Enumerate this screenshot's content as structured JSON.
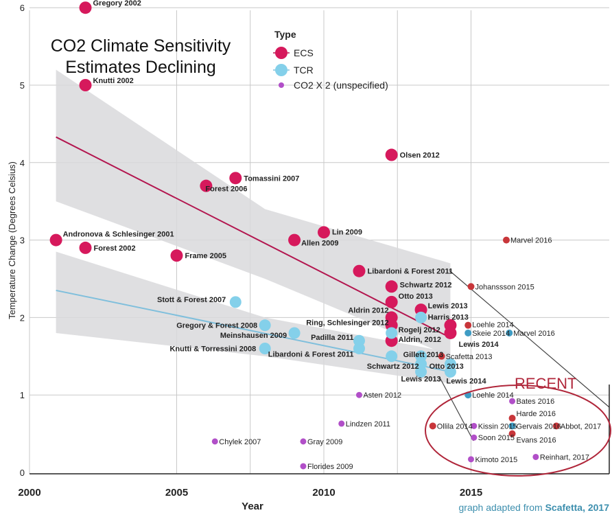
{
  "chart_data": {
    "type": "scatter",
    "title": "CO2 Climate Sensitivity Estimates Declining",
    "title_lines": [
      "CO2 Climate Sensitivity",
      "Estimates Declining"
    ],
    "xlabel": "Year",
    "ylabel": "Temperature Change (Degrees Celsius)",
    "xlim": [
      2000,
      2019.7
    ],
    "ylim": [
      0,
      6
    ],
    "x_ticks": [
      "2000",
      "2005",
      "2010",
      "2015"
    ],
    "y_ticks": [
      "0",
      "1",
      "2",
      "3",
      "4",
      "5",
      "6"
    ],
    "grid": true,
    "legend": {
      "title": "Type",
      "placement": "top-center",
      "entries": [
        {
          "key": "ECS",
          "label": "ECS"
        },
        {
          "key": "TCR",
          "label": "TCR"
        },
        {
          "key": "CO2",
          "label": "CO2 X 2 (unspecified)"
        }
      ]
    },
    "colors": {
      "ECS": "#d6195c",
      "ECS_small": "#c8363a",
      "TCR": "#84d0ea",
      "TCR_small": "#3f9cc4",
      "CO2": "#b14fc8",
      "ECS_line": "#b3164f",
      "TCR_line": "#7fbfdc",
      "band": "#d9d9dc",
      "recent": "#b0263a",
      "credit": "#3d8fae"
    },
    "trend_lines": [
      {
        "series": "ECS",
        "x": [
          2000.9,
          2014.3
        ],
        "y": [
          4.33,
          1.74
        ]
      },
      {
        "series": "TCR",
        "x": [
          2000.9,
          2014.3
        ],
        "y": [
          2.35,
          1.3
        ]
      }
    ],
    "bands": [
      {
        "series": "ECS",
        "x": [
          2000.9,
          2008,
          2014.3
        ],
        "upper": [
          5.2,
          3.4,
          2.7
        ],
        "lower": [
          3.5,
          2.5,
          1.5
        ]
      },
      {
        "series": "TCR",
        "x": [
          2000.9,
          2008,
          2014.3
        ],
        "upper": [
          2.85,
          2.0,
          1.55
        ],
        "lower": [
          1.8,
          1.5,
          1.15
        ]
      }
    ],
    "points": [
      {
        "label": "Gregory 2002",
        "x": 2001.9,
        "y": 6.0,
        "type": "ECS"
      },
      {
        "label": "Knutti 2002",
        "x": 2001.9,
        "y": 5.0,
        "type": "ECS"
      },
      {
        "label": "Andronova & Schlesinger 2001",
        "x": 2000.9,
        "y": 3.0,
        "type": "ECS"
      },
      {
        "label": "Forest 2002",
        "x": 2001.9,
        "y": 2.9,
        "type": "ECS"
      },
      {
        "label": "Frame 2005",
        "x": 2005.0,
        "y": 2.8,
        "type": "ECS"
      },
      {
        "label": "Forest 2006",
        "x": 2006.0,
        "y": 3.7,
        "type": "ECS"
      },
      {
        "label": "Tomassini 2007",
        "x": 2007.0,
        "y": 3.8,
        "type": "ECS"
      },
      {
        "label": "Allen 2009",
        "x": 2009.0,
        "y": 3.0,
        "type": "ECS"
      },
      {
        "label": "Lin 2009",
        "x": 2010.0,
        "y": 3.1,
        "type": "ECS"
      },
      {
        "label": "Olsen 2012",
        "x": 2012.3,
        "y": 4.1,
        "type": "ECS"
      },
      {
        "label": "Libardoni & Forest 2011",
        "x": 2011.2,
        "y": 2.6,
        "type": "ECS"
      },
      {
        "label": "Schwartz 2012",
        "x": 2012.3,
        "y": 2.4,
        "type": "ECS"
      },
      {
        "label": "Otto 2013",
        "x": 2012.3,
        "y": 2.2,
        "type": "ECS"
      },
      {
        "label": "Aldrin 2012",
        "x": 2012.3,
        "y": 2.0,
        "type": "ECS"
      },
      {
        "label": "Ring, Schlesinger 2012",
        "x": 2012.3,
        "y": 1.9,
        "type": "ECS"
      },
      {
        "label": "Aldrin, 2012",
        "x": 2012.3,
        "y": 1.7,
        "type": "ECS"
      },
      {
        "label": "Lewis 2013",
        "x": 2013.3,
        "y": 2.1,
        "type": "ECS"
      },
      {
        "label": "",
        "x": 2014.3,
        "y": 1.9,
        "type": "ECS"
      },
      {
        "label": "Lewis 2014",
        "x": 2014.3,
        "y": 1.8,
        "type": "ECS"
      },
      {
        "label": "Stott & Forest 2007",
        "x": 2007.0,
        "y": 2.2,
        "type": "TCR"
      },
      {
        "label": "Gregory & Forest 2008",
        "x": 2008.0,
        "y": 1.9,
        "type": "TCR"
      },
      {
        "label": "Meinshausen 2009",
        "x": 2009.0,
        "y": 1.8,
        "type": "TCR"
      },
      {
        "label": "Knutti & Torressini 2008",
        "x": 2008.0,
        "y": 1.6,
        "type": "TCR"
      },
      {
        "label": "Padilla 2011",
        "x": 2011.2,
        "y": 1.7,
        "type": "TCR"
      },
      {
        "label": "Libardoni & Forest 2011",
        "x": 2011.2,
        "y": 1.6,
        "type": "TCR"
      },
      {
        "label": "Rogelj 2012",
        "x": 2012.3,
        "y": 1.8,
        "type": "TCR"
      },
      {
        "label": "Schwartz 2012",
        "x": 2012.3,
        "y": 1.5,
        "type": "TCR"
      },
      {
        "label": "Harris 2013",
        "x": 2013.3,
        "y": 2.0,
        "type": "TCR"
      },
      {
        "label": "Gillett 2013",
        "x": 2013.3,
        "y": 1.5,
        "type": "TCR"
      },
      {
        "label": "Otto 2013",
        "x": 2013.3,
        "y": 1.4,
        "type": "TCR"
      },
      {
        "label": "Lewis 2013",
        "x": 2013.3,
        "y": 1.3,
        "type": "TCR"
      },
      {
        "label": "",
        "x": 2014.3,
        "y": 1.4,
        "type": "TCR"
      },
      {
        "label": "Lewis 2014",
        "x": 2014.3,
        "y": 1.3,
        "type": "TCR"
      },
      {
        "label": "Johanssson 2015",
        "x": 2015.0,
        "y": 2.4,
        "type": "ECS_small"
      },
      {
        "label": "Marvel 2016",
        "x": 2016.2,
        "y": 3.0,
        "type": "ECS_small"
      },
      {
        "label": "Loehle 2014",
        "x": 2014.9,
        "y": 1.9,
        "type": "ECS_small"
      },
      {
        "label": "Skeie 2014",
        "x": 2014.9,
        "y": 1.8,
        "type": "TCR_small"
      },
      {
        "label": "Marvel 2016",
        "x": 2016.3,
        "y": 1.8,
        "type": "TCR_small"
      },
      {
        "label": "Scafetta 2013",
        "x": 2014.0,
        "y": 1.5,
        "type": "ECS_small"
      },
      {
        "label": "Loehle 2014",
        "x": 2014.9,
        "y": 1.0,
        "type": "TCR_small"
      },
      {
        "label": "Asten 2012",
        "x": 2011.2,
        "y": 1.0,
        "type": "CO2"
      },
      {
        "label": "Lindzen 2011",
        "x": 2010.6,
        "y": 0.63,
        "type": "CO2"
      },
      {
        "label": "Chylek 2007",
        "x": 2006.3,
        "y": 0.4,
        "type": "CO2"
      },
      {
        "label": "Gray 2009",
        "x": 2009.3,
        "y": 0.4,
        "type": "CO2"
      },
      {
        "label": "Florides 2009",
        "x": 2009.3,
        "y": 0.08,
        "type": "CO2"
      },
      {
        "label": "Ollila 2014",
        "x": 2013.7,
        "y": 0.6,
        "type": "ECS_small"
      },
      {
        "label": "Kissin 2015",
        "x": 2015.1,
        "y": 0.6,
        "type": "CO2"
      },
      {
        "label": "Soon 2015",
        "x": 2015.1,
        "y": 0.45,
        "type": "CO2"
      },
      {
        "label": "Kimoto 2015",
        "x": 2015.0,
        "y": 0.17,
        "type": "CO2"
      },
      {
        "label": "Bates 2016",
        "x": 2016.4,
        "y": 0.92,
        "type": "CO2"
      },
      {
        "label": "Harde 2016",
        "x": 2016.4,
        "y": 0.7,
        "type": "ECS_small"
      },
      {
        "label": "Gervais 2016",
        "x": 2016.4,
        "y": 0.6,
        "type": "TCR_small"
      },
      {
        "label": "Evans 2016",
        "x": 2016.4,
        "y": 0.5,
        "type": "ECS_small"
      },
      {
        "label": "Abbot, 2017",
        "x": 2017.9,
        "y": 0.6,
        "type": "ECS_small"
      },
      {
        "label": "Reinhart, 2017",
        "x": 2017.2,
        "y": 0.2,
        "type": "CO2"
      }
    ],
    "annotations": {
      "recent_label": "RECENT",
      "credit_prefix": "graph adapted from ",
      "credit_source": "Scafetta, 2017"
    }
  }
}
